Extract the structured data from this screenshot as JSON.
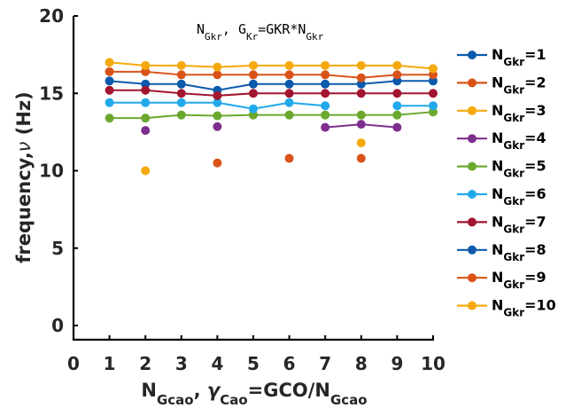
{
  "chart_data": {
    "type": "line",
    "title": {
      "base1": "N",
      "sub1": "Gkr",
      "mid": ", G",
      "sub2": "Kr",
      "rest": "=GKR*N",
      "sub3": "Gkr"
    },
    "xlabel": {
      "base1": "N",
      "sub1": "Gcao",
      "mid": ", ",
      "greek": "γ",
      "sub2": "Cao",
      "rest": "=GCO/N",
      "sub3": "Gcao"
    },
    "ylabel": {
      "prefix": "frequency,",
      "greek": "ν",
      "suffix": " (Hz)"
    },
    "xlim": [
      0,
      10
    ],
    "ylim": [
      0,
      20
    ],
    "xticks": [
      "0",
      "1",
      "2",
      "3",
      "4",
      "5",
      "6",
      "7",
      "8",
      "9",
      "10"
    ],
    "yticks": [
      "0",
      "5",
      "10",
      "15",
      "20"
    ],
    "grid": false,
    "legend_position": "right",
    "series": [
      {
        "name": {
          "base": "N",
          "sub": "Gkr",
          "value": "=1"
        },
        "color": "#0B5AAB",
        "points": [
          [
            1,
            15.8
          ],
          [
            2,
            15.6
          ],
          [
            3,
            15.6
          ],
          [
            4,
            15.2
          ],
          [
            5,
            15.6
          ],
          [
            6,
            15.6
          ],
          [
            7,
            15.6
          ],
          [
            8,
            15.6
          ],
          [
            9,
            15.8
          ],
          [
            10,
            15.8
          ]
        ]
      },
      {
        "name": {
          "base": "N",
          "sub": "Gkr",
          "value": "=2"
        },
        "color": "#D95319",
        "points": [
          [
            1,
            16.4
          ],
          [
            2,
            16.4
          ],
          [
            3,
            16.2
          ],
          [
            4,
            16.2
          ],
          [
            5,
            16.2
          ],
          [
            6,
            16.2
          ],
          [
            7,
            16.2
          ],
          [
            8,
            16.0
          ],
          [
            9,
            16.2
          ],
          [
            10,
            16.2
          ]
        ]
      },
      {
        "name": {
          "base": "N",
          "sub": "Gkr",
          "value": "=3"
        },
        "color": "#F5A90E",
        "points": [
          [
            1,
            17.0
          ],
          [
            2,
            16.8
          ],
          [
            3,
            16.8
          ],
          [
            4,
            16.7
          ],
          [
            5,
            16.8
          ],
          [
            6,
            16.8
          ],
          [
            7,
            16.8
          ],
          [
            8,
            16.8
          ],
          [
            9,
            16.8
          ],
          [
            10,
            16.6
          ]
        ]
      },
      {
        "name": {
          "base": "N",
          "sub": "Gkr",
          "value": "=4"
        },
        "color": "#7E2F8E",
        "points": [
          [
            2,
            12.6
          ],
          [
            4,
            12.85
          ],
          [
            7,
            12.8
          ],
          [
            8,
            13.0
          ],
          [
            9,
            12.8
          ]
        ],
        "segments": [
          [
            7,
            8,
            9
          ]
        ]
      },
      {
        "name": {
          "base": "N",
          "sub": "Gkr",
          "value": "=5"
        },
        "color": "#6BA82E",
        "points": [
          [
            1,
            13.4
          ],
          [
            2,
            13.4
          ],
          [
            3,
            13.6
          ],
          [
            4,
            13.55
          ],
          [
            5,
            13.6
          ],
          [
            6,
            13.6
          ],
          [
            7,
            13.6
          ],
          [
            8,
            13.6
          ],
          [
            9,
            13.6
          ],
          [
            10,
            13.8
          ]
        ]
      },
      {
        "name": {
          "base": "N",
          "sub": "Gkr",
          "value": "=6"
        },
        "color": "#22A9EC",
        "points": [
          [
            1,
            14.4
          ],
          [
            2,
            14.4
          ],
          [
            3,
            14.4
          ],
          [
            4,
            14.4
          ],
          [
            5,
            14.0
          ],
          [
            6,
            14.4
          ],
          [
            7,
            14.2
          ],
          [
            9,
            14.2
          ],
          [
            10,
            14.2
          ]
        ],
        "segments": [
          [
            1,
            2,
            3,
            4,
            5,
            6,
            7
          ],
          [
            9,
            10
          ]
        ]
      },
      {
        "name": {
          "base": "N",
          "sub": "Gkr",
          "value": "=7"
        },
        "color": "#A2142F",
        "points": [
          [
            1,
            15.2
          ],
          [
            2,
            15.2
          ],
          [
            3,
            15.0
          ],
          [
            4,
            14.85
          ],
          [
            5,
            15.0
          ],
          [
            6,
            15.0
          ],
          [
            7,
            15.0
          ],
          [
            8,
            15.0
          ],
          [
            9,
            15.0
          ],
          [
            10,
            15.0
          ]
        ]
      },
      {
        "name": {
          "base": "N",
          "sub": "Gkr",
          "value": "=8"
        },
        "color": "#0B5AAB",
        "points": [],
        "segments": []
      },
      {
        "name": {
          "base": "N",
          "sub": "Gkr",
          "value": "=9"
        },
        "color": "#D95319",
        "points": [
          [
            4,
            10.5
          ],
          [
            6,
            10.8
          ],
          [
            8,
            10.8
          ]
        ],
        "segments": []
      },
      {
        "name": {
          "base": "N",
          "sub": "Gkr",
          "value": "=10"
        },
        "color": "#F5A90E",
        "points": [
          [
            2,
            10.0
          ],
          [
            8,
            11.8
          ]
        ],
        "segments": []
      }
    ]
  }
}
